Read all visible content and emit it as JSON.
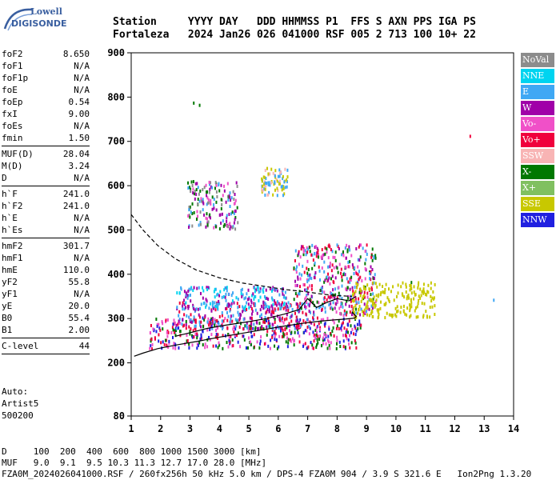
{
  "logo": {
    "line1": "Lowell",
    "line2": "DIGISONDE"
  },
  "header": {
    "line1": "Station     YYYY DAY   DDD HHMMSS P1  FFS S AXN PPS IGA PS",
    "line2": "Fortaleza   2024 Jan26 026 041000 RSF 005 2 713 100 10+ 22"
  },
  "params": [
    {
      "name": "foF2",
      "value": "8.650"
    },
    {
      "name": "foF1",
      "value": "N/A"
    },
    {
      "name": "foF1p",
      "value": "N/A"
    },
    {
      "name": "foE",
      "value": "N/A"
    },
    {
      "name": "foEp",
      "value": "0.54"
    },
    {
      "name": "fxI",
      "value": "9.00"
    },
    {
      "name": "foEs",
      "value": "N/A"
    },
    {
      "name": "fmin",
      "value": "1.50"
    },
    {
      "sep": true
    },
    {
      "name": "MUF(D)",
      "value": "28.04"
    },
    {
      "name": "M(D)",
      "value": "3.24"
    },
    {
      "name": "D",
      "value": "N/A"
    },
    {
      "sep": true
    },
    {
      "name": "h`F",
      "value": "241.0"
    },
    {
      "name": "h`F2",
      "value": "241.0"
    },
    {
      "name": "h`E",
      "value": "N/A"
    },
    {
      "name": "h`Es",
      "value": "N/A"
    },
    {
      "sep": true
    },
    {
      "name": "hmF2",
      "value": "301.7"
    },
    {
      "name": "hmF1",
      "value": "N/A"
    },
    {
      "name": "hmE",
      "value": "110.0"
    },
    {
      "name": "yF2",
      "value": "55.8"
    },
    {
      "name": "yF1",
      "value": "N/A"
    },
    {
      "name": "yE",
      "value": "20.0"
    },
    {
      "name": "B0",
      "value": "55.4"
    },
    {
      "name": "B1",
      "value": "2.00"
    },
    {
      "sep": true
    },
    {
      "name": "C-level",
      "value": "44"
    },
    {
      "sep": true
    }
  ],
  "auto": {
    "line1": "Auto:",
    "line2": "Artist5",
    "line3": "500200"
  },
  "legend": [
    {
      "label": "NoVal",
      "color": "#8c8c8c"
    },
    {
      "label": "NNE",
      "color": "#00d4f0"
    },
    {
      "label": "E",
      "color": "#3fa8f4"
    },
    {
      "label": "W",
      "color": "#a000a8"
    },
    {
      "label": "Vo-",
      "color": "#f050c8"
    },
    {
      "label": "Vo+",
      "color": "#f0003c"
    },
    {
      "label": "SSW",
      "color": "#f8b4b4"
    },
    {
      "label": "X-",
      "color": "#007800"
    },
    {
      "label": "X+",
      "color": "#80c060"
    },
    {
      "label": "SSE",
      "color": "#c8c800"
    },
    {
      "label": "NNW",
      "color": "#2020e0"
    }
  ],
  "footer": {
    "line1": "D     100  200  400  600  800 1000 1500 3000 [km]",
    "line2": "MUF   9.0  9.1  9.5 10.3 11.3 12.7 17.0 28.0 [MHz]",
    "line3": "FZA0M_2024026041000.RSF / 260fx256h 50 kHz 5.0 km / DPS-4 FZA0M 904 / 3.9 S 321.6 E   Ion2Png 1.3.20"
  },
  "chart_data": {
    "type": "scatter",
    "title": "",
    "xlabel": "",
    "ylabel": "",
    "xlim": [
      1,
      14
    ],
    "ylim": [
      80,
      900
    ],
    "x_ticks": [
      1,
      2,
      3,
      4,
      5,
      6,
      7,
      8,
      9,
      10,
      11,
      12,
      13,
      14
    ],
    "y_ticks": [
      80,
      200,
      300,
      400,
      500,
      600,
      700,
      800,
      900
    ],
    "grid": false,
    "legend_position": "right",
    "ordinary_trace_profile": {
      "x": [
        1.1,
        1.4,
        1.9,
        2.5,
        3.2,
        4.0,
        4.8,
        5.5,
        6.2,
        6.8,
        7.4,
        7.9,
        8.3,
        8.6,
        8.65,
        8.5
      ],
      "y": [
        215,
        222,
        232,
        240,
        248,
        258,
        267,
        275,
        283,
        289,
        294,
        297,
        299,
        301,
        305,
        315
      ]
    },
    "extraordinary_trace": {
      "x": [
        2.5,
        3.0,
        3.6,
        4.2,
        4.9,
        5.6,
        6.2,
        6.7,
        7.0,
        7.3,
        7.6,
        8.0,
        8.4,
        8.65
      ],
      "y": [
        260,
        268,
        278,
        285,
        292,
        300,
        310,
        320,
        345,
        325,
        335,
        345,
        340,
        350
      ]
    },
    "density_profile_dashed": {
      "x": [
        1.0,
        1.4,
        1.9,
        2.5,
        3.2,
        4.0,
        4.8,
        5.6,
        6.3,
        7.0,
        7.5,
        8.0,
        8.5
      ],
      "y": [
        535,
        500,
        465,
        435,
        410,
        392,
        380,
        372,
        365,
        360,
        355,
        352,
        350
      ]
    },
    "echo_clusters": [
      {
        "name": "F-trace O",
        "x": [
          1.6,
          8.8
        ],
        "y": [
          235,
          305
        ],
        "colors": [
          "#f050c8",
          "#f0003c",
          "#007800",
          "#2020e0"
        ]
      },
      {
        "name": "F-trace lower",
        "x": [
          2.5,
          7.2
        ],
        "y": [
          280,
          340
        ],
        "colors": [
          "#3fa8f4",
          "#a000a8",
          "#f0003c"
        ]
      },
      {
        "name": "F-trace upper",
        "x": [
          2.5,
          6.3
        ],
        "y": [
          325,
          375
        ],
        "colors": [
          "#3fa8f4",
          "#a000a8",
          "#00d4f0"
        ]
      },
      {
        "name": "Spread F",
        "x": [
          6.5,
          9.3
        ],
        "y": [
          310,
          470
        ],
        "colors": [
          "#f0003c",
          "#f050c8",
          "#a000a8",
          "#007800",
          "#3fa8f4"
        ]
      },
      {
        "name": "SSE spread",
        "x": [
          8.5,
          11.3
        ],
        "y": [
          305,
          385
        ],
        "colors": [
          "#c8c800"
        ]
      },
      {
        "name": "Multiple hop",
        "x": [
          2.9,
          4.6
        ],
        "y": [
          505,
          615
        ],
        "colors": [
          "#3fa8f4",
          "#f050c8",
          "#007800",
          "#a000a8",
          "#8c8c8c"
        ]
      },
      {
        "name": "Multiple hop 2",
        "x": [
          5.4,
          6.3
        ],
        "y": [
          580,
          645
        ],
        "colors": [
          "#c8c800",
          "#f8b4b4",
          "#3fa8f4"
        ]
      }
    ],
    "isolated_points": [
      {
        "x": 3.1,
        "y": 790,
        "color": "#007800"
      },
      {
        "x": 3.3,
        "y": 785,
        "color": "#007800"
      },
      {
        "x": 12.5,
        "y": 715,
        "color": "#f0003c"
      },
      {
        "x": 13.3,
        "y": 345,
        "color": "#3fa8f4"
      },
      {
        "x": 10.5,
        "y": 385,
        "color": "#007800"
      }
    ]
  }
}
